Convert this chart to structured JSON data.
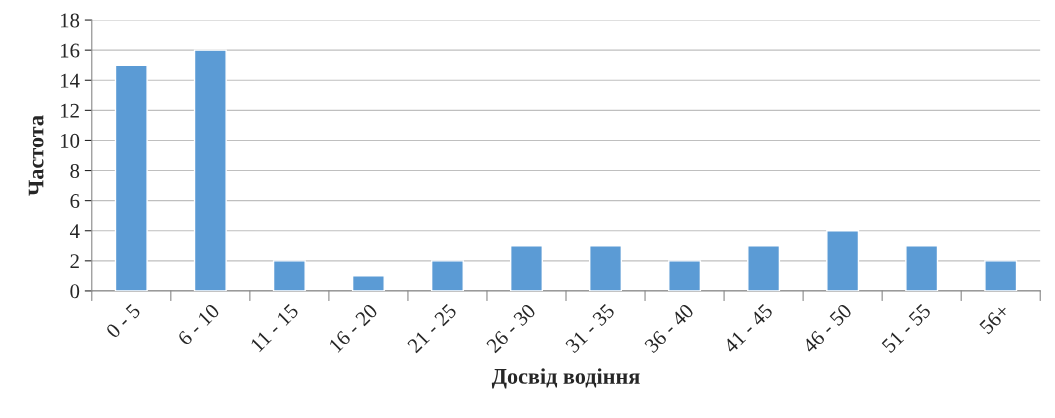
{
  "chart_data": {
    "type": "bar",
    "xlabel": "Досвід водіння",
    "ylabel": "Частота",
    "categories": [
      "0 - 5",
      "6 - 10",
      "11 - 15",
      "16 - 20",
      "21 - 25",
      "26 - 30",
      "31 - 35",
      "36 - 40",
      "41 - 45",
      "46 - 50",
      "51 - 55",
      "56+"
    ],
    "values": [
      15,
      16,
      2,
      1,
      2,
      3,
      3,
      2,
      3,
      4,
      3,
      2
    ],
    "color": "#5b9bd5",
    "ylim": [
      0,
      18
    ],
    "yticks": [
      0,
      2,
      4,
      6,
      8,
      10,
      12,
      14,
      16,
      18
    ],
    "grid": "y",
    "legend": false
  }
}
